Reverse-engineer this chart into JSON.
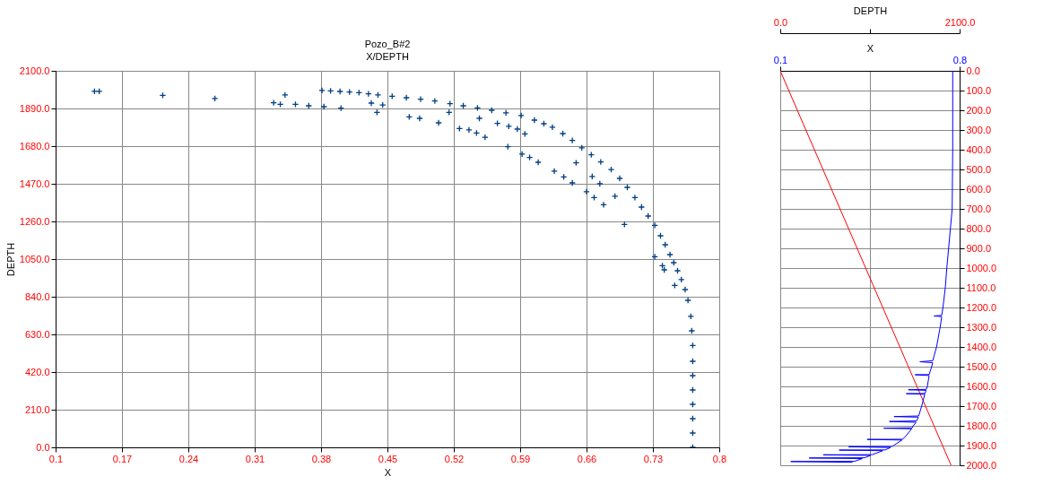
{
  "chart_data": [
    {
      "type": "scatter",
      "title": "Pozo_B#2",
      "subtitle": "X/DEPTH",
      "xlabel": "X",
      "ylabel": "DEPTH",
      "xlim": [
        0.1,
        0.8
      ],
      "xticks": [
        0.1,
        0.17,
        0.24,
        0.31,
        0.38,
        0.45,
        0.52,
        0.59,
        0.66,
        0.73,
        0.8
      ],
      "ylim": [
        0,
        2100
      ],
      "yticks": [
        {
          "value": 0,
          "label": "0.0"
        },
        {
          "value": 210,
          "label": "210.0"
        },
        {
          "value": 420,
          "label": "420.0"
        },
        {
          "value": 630,
          "label": "630.0"
        },
        {
          "value": 840,
          "label": "840.0"
        },
        {
          "value": 1050,
          "label": "1050.0"
        },
        {
          "value": 1260,
          "label": "1260.0"
        },
        {
          "value": 1470,
          "label": "1470.0"
        },
        {
          "value": 1680,
          "label": "1680.0"
        },
        {
          "value": 1890,
          "label": "1890.0"
        },
        {
          "value": 2100,
          "label": "2100.0"
        }
      ],
      "grid": true,
      "marker": "cross",
      "series": [
        {
          "color": "#003f7f",
          "x": [
            0.381,
            0.39,
            0.4,
            0.41,
            0.42,
            0.43,
            0.44,
            0.455,
            0.47,
            0.485,
            0.5,
            0.516,
            0.53,
            0.545,
            0.56,
            0.575,
            0.591,
            0.605,
            0.615,
            0.624,
            0.635,
            0.645,
            0.655,
            0.665,
            0.675,
            0.686,
            0.695,
            0.703,
            0.711,
            0.718,
            0.725,
            0.732,
            0.738,
            0.743,
            0.748,
            0.752,
            0.756,
            0.76,
            0.764,
            0.767,
            0.77,
            0.771,
            0.772,
            0.772,
            0.772,
            0.772,
            0.772,
            0.772,
            0.772,
            0.772,
            0.141,
            0.146,
            0.213,
            0.268,
            0.33,
            0.342,
            0.337,
            0.353,
            0.367,
            0.383,
            0.401,
            0.433,
            0.439,
            0.445,
            0.473,
            0.484,
            0.504,
            0.515,
            0.526,
            0.536,
            0.544,
            0.553,
            0.547,
            0.566,
            0.578,
            0.587,
            0.595,
            0.577,
            0.592,
            0.6,
            0.609,
            0.626,
            0.636,
            0.645,
            0.649,
            0.66,
            0.668,
            0.666,
            0.674,
            0.678,
            0.69,
            0.7,
            0.732,
            0.74,
            0.742,
            0.753
          ],
          "values": [
            1991,
            1988,
            1985,
            1982,
            1978,
            1972,
            1966,
            1958,
            1950,
            1942,
            1932,
            1917,
            1905,
            1893,
            1880,
            1866,
            1851,
            1825,
            1805,
            1786,
            1750,
            1712,
            1671,
            1632,
            1592,
            1549,
            1500,
            1450,
            1393,
            1340,
            1290,
            1238,
            1180,
            1130,
            1075,
            1030,
            985,
            936,
            880,
            820,
            731,
            650,
            568,
            480,
            400,
            320,
            240,
            160,
            80,
            0,
            1986,
            1986,
            1963,
            1946,
            1922,
            1966,
            1913,
            1913,
            1905,
            1900,
            1892,
            1920,
            1868,
            1909,
            1843,
            1835,
            1810,
            1868,
            1778,
            1771,
            1753,
            1729,
            1835,
            1807,
            1791,
            1775,
            1748,
            1677,
            1636,
            1617,
            1590,
            1541,
            1508,
            1475,
            1587,
            1426,
            1393,
            1511,
            1470,
            1353,
            1401,
            1243,
            1063,
            1013,
            990,
            903
          ]
        }
      ]
    },
    {
      "type": "line",
      "xlabel": "DEPTH",
      "x2label": "X",
      "xlim": [
        0,
        2100
      ],
      "xticks": [
        {
          "value": 0,
          "label": "0.0"
        },
        {
          "value": 1050,
          "label": null
        },
        {
          "value": 2100,
          "label": "2100.0"
        }
      ],
      "x2lim": [
        0.1,
        0.8
      ],
      "x2ticks": [
        0.1,
        0.8
      ],
      "ylim": [
        2000,
        0
      ],
      "yticks": [
        {
          "value": 0,
          "label": "0.0"
        },
        {
          "value": 100,
          "label": "100.0"
        },
        {
          "value": 200,
          "label": "200.0"
        },
        {
          "value": 300,
          "label": "300.0"
        },
        {
          "value": 400,
          "label": "400.0"
        },
        {
          "value": 500,
          "label": "500.0"
        },
        {
          "value": 600,
          "label": "600.0"
        },
        {
          "value": 700,
          "label": "700.0"
        },
        {
          "value": 800,
          "label": "800.0"
        },
        {
          "value": 900,
          "label": "900.0"
        },
        {
          "value": 1000,
          "label": "1000.0"
        },
        {
          "value": 1100,
          "label": "1100.0"
        },
        {
          "value": 1200,
          "label": "1200.0"
        },
        {
          "value": 1300,
          "label": "1300.0"
        },
        {
          "value": 1400,
          "label": "1400.0"
        },
        {
          "value": 1500,
          "label": "1500.0"
        },
        {
          "value": 1600,
          "label": "1600.0"
        },
        {
          "value": 1700,
          "label": "1700.0"
        },
        {
          "value": 1800,
          "label": "1800.0"
        },
        {
          "value": 1900,
          "label": "1900.0"
        },
        {
          "value": 2000,
          "label": "2000.0"
        }
      ],
      "grid": true,
      "line_style": "solid",
      "series": [
        {
          "color": "#ff0000",
          "x": [
            0,
            2000
          ],
          "values": [
            0,
            2000
          ]
        },
        {
          "color": "#0000ff",
          "axis": "x2",
          "x": [
            0.773,
            0.773,
            0.771,
            0.757,
            0.75,
            0.744,
            0.735,
            0.73,
            0.7,
            0.73,
            0.724,
            0.71,
            0.695,
            0.645,
            0.695,
            0.691,
            0.681,
            0.626,
            0.681,
            0.674,
            0.67,
            0.6,
            0.669,
            0.665,
            0.592,
            0.664,
            0.652,
            0.64,
            0.544,
            0.639,
            0.632,
            0.526,
            0.63,
            0.619,
            0.615,
            0.504,
            0.613,
            0.591,
            0.578,
            0.439,
            0.575,
            0.542,
            0.535,
            0.367,
            0.53,
            0.51,
            0.33,
            0.5,
            0.46,
            0.268,
            0.452,
            0.43,
            0.213,
            0.42,
            0.39,
            0.141,
            0.382
          ],
          "values": [
            0,
            400,
            700,
            900,
            1000,
            1100,
            1200,
            1240,
            1243,
            1246,
            1300,
            1400,
            1470,
            1475,
            1480,
            1500,
            1540,
            1541,
            1545,
            1600,
            1615,
            1617,
            1620,
            1636,
            1637,
            1640,
            1700,
            1750,
            1753,
            1756,
            1775,
            1778,
            1782,
            1800,
            1810,
            1812,
            1815,
            1850,
            1868,
            1869,
            1872,
            1900,
            1905,
            1906,
            1910,
            1922,
            1923,
            1926,
            1946,
            1947,
            1950,
            1962,
            1963,
            1966,
            1980,
            1981,
            1985
          ]
        }
      ]
    }
  ]
}
